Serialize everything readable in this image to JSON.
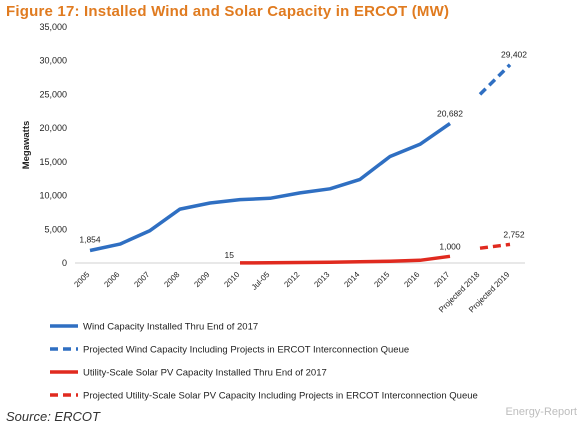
{
  "title": "Figure 17: Installed Wind and Solar Capacity in ERCOT (MW)",
  "source": "Source: ERCOT",
  "watermark": "Energy-Report",
  "colors": {
    "title": "#e07b20",
    "wind": "#2f6fc2",
    "solar": "#e02a1f"
  },
  "chart_data": {
    "type": "line",
    "title": "Figure 17: Installed Wind and Solar Capacity in ERCOT (MW)",
    "ylabel": "Megawatts",
    "xlabel": "",
    "ylim": [
      0,
      35000
    ],
    "yticks": [
      "0",
      "5,000",
      "10,000",
      "15,000",
      "20,000",
      "25,000",
      "30,000",
      "35,000"
    ],
    "categories": [
      "2005",
      "2006",
      "2007",
      "2008",
      "2009",
      "2010",
      "Jul-05",
      "2012",
      "2013",
      "2014",
      "2015",
      "2016",
      "2017",
      "Projected 2018",
      "Projected 2019"
    ],
    "grid": false,
    "legend_position": "bottom",
    "series": [
      {
        "key": "wind",
        "name": "Wind Capacity Installed Thru End of 2017",
        "color": "#2f6fc2",
        "style": "solid",
        "values": [
          1854,
          2800,
          4800,
          8000,
          8900,
          9400,
          9600,
          10400,
          11000,
          12400,
          15800,
          17600,
          20682,
          null,
          null
        ]
      },
      {
        "key": "wind_proj",
        "name": "Projected Wind Capacity Including Projects in ERCOT Interconnection Queue",
        "color": "#2f6fc2",
        "style": "dashed",
        "values": [
          null,
          null,
          null,
          null,
          null,
          null,
          null,
          null,
          null,
          null,
          null,
          null,
          null,
          25000,
          29402
        ]
      },
      {
        "key": "solar",
        "name": "Utility-Scale Solar PV Capacity Installed Thru End of 2017",
        "color": "#e02a1f",
        "style": "solid",
        "values": [
          null,
          null,
          null,
          null,
          null,
          15,
          30,
          80,
          120,
          200,
          250,
          400,
          1000,
          null,
          null
        ]
      },
      {
        "key": "solar_proj",
        "name": "Projected Utility-Scale Solar PV Capacity Including Projects in ERCOT Interconnection Queue",
        "color": "#e02a1f",
        "style": "dashed",
        "values": [
          null,
          null,
          null,
          null,
          null,
          null,
          null,
          null,
          null,
          null,
          null,
          null,
          null,
          2200,
          2752
        ]
      }
    ],
    "annotations": [
      {
        "series": "wind",
        "index": 0,
        "text": "1,854"
      },
      {
        "series": "wind",
        "index": 12,
        "text": "20,682"
      },
      {
        "series": "wind_proj",
        "index": 14,
        "text": "29,402"
      },
      {
        "series": "solar",
        "index": 5,
        "text": "15"
      },
      {
        "series": "solar",
        "index": 12,
        "text": "1,000"
      },
      {
        "series": "solar_proj",
        "index": 14,
        "text": "2,752"
      }
    ]
  }
}
